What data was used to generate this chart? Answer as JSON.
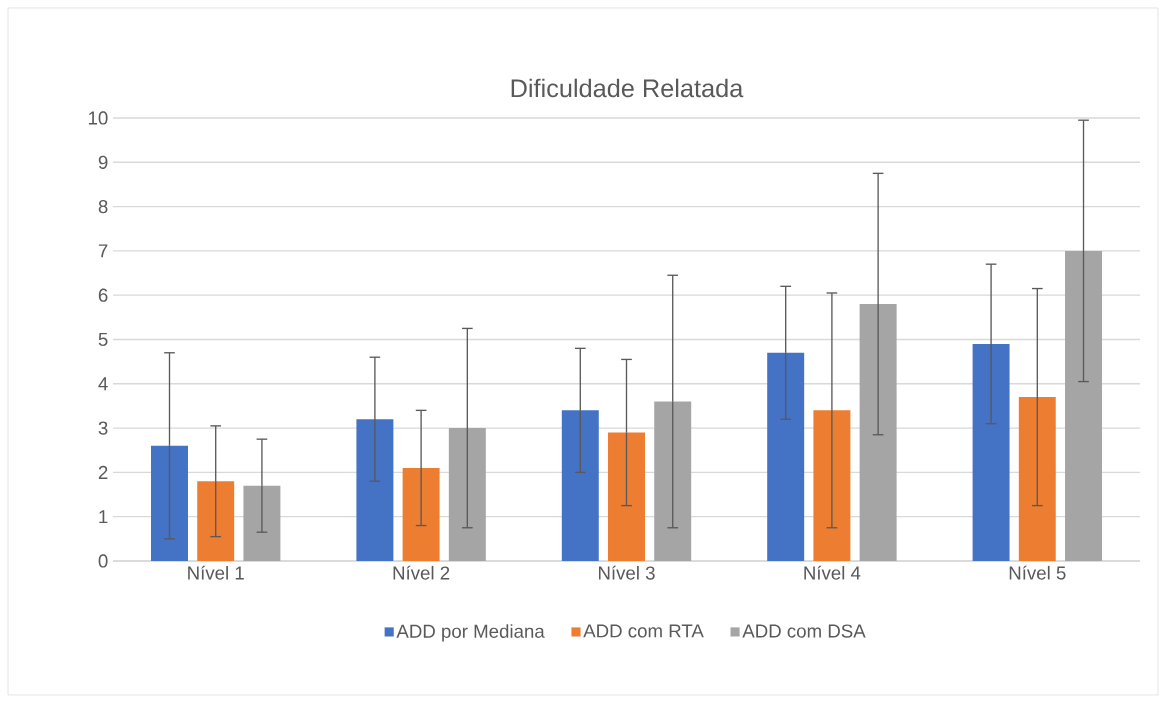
{
  "chart_data": {
    "type": "bar",
    "title": "Dificuldade Relatada",
    "categories": [
      "Nível 1",
      "Nível 2",
      "Nível 3",
      "Nível 4",
      "Nível 5"
    ],
    "series": [
      {
        "name": "ADD por Mediana",
        "color": "#4472c4",
        "values": [
          2.6,
          3.2,
          3.4,
          4.7,
          4.9
        ],
        "errors": [
          2.1,
          1.4,
          1.4,
          1.5,
          1.8
        ]
      },
      {
        "name": "ADD com RTA",
        "color": "#ed7d31",
        "values": [
          1.8,
          2.1,
          2.9,
          3.4,
          3.7
        ],
        "errors": [
          1.25,
          1.3,
          1.65,
          2.65,
          2.45
        ]
      },
      {
        "name": "ADD com DSA",
        "color": "#a5a5a5",
        "values": [
          1.7,
          3.0,
          3.6,
          5.8,
          7.0
        ],
        "errors": [
          1.05,
          2.25,
          2.85,
          2.95,
          2.95
        ]
      }
    ],
    "ylim": [
      0,
      10
    ],
    "yticks": [
      0,
      1,
      2,
      3,
      4,
      5,
      6,
      7,
      8,
      9,
      10
    ],
    "grid": "y",
    "legend": "bottom"
  }
}
